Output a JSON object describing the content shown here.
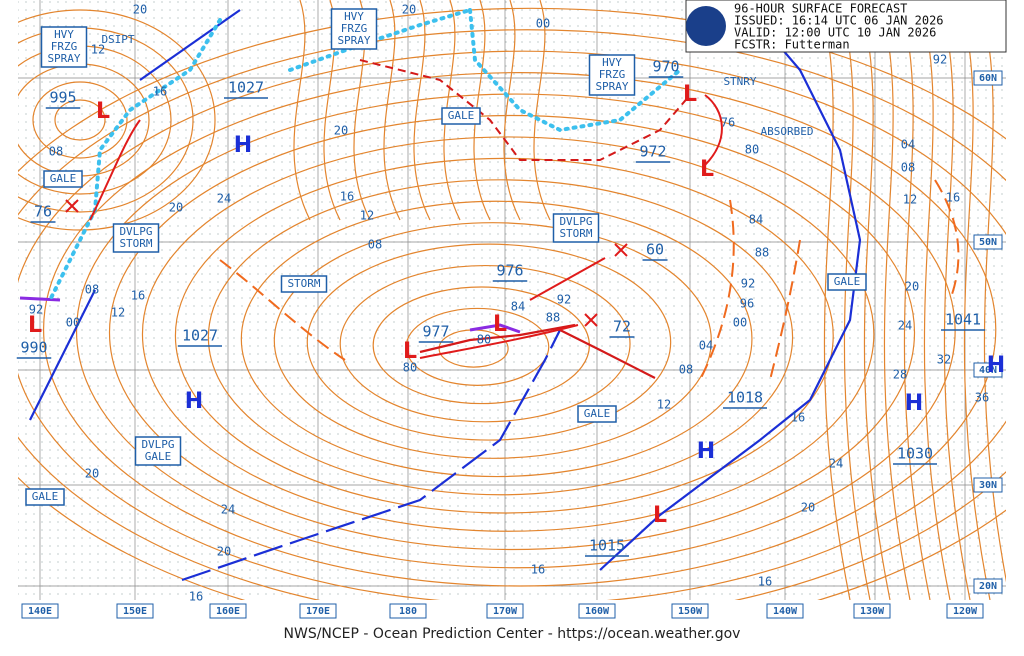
{
  "header": {
    "lines": [
      "96-HOUR SURFACE FORECAST",
      "ISSUED: 16:14 UTC 06 JAN 2026",
      "VALID:  12:00 UTC 10 JAN 2026",
      "FCSTR:  Futterman"
    ]
  },
  "footer": "NWS/NCEP - Ocean Prediction Center - https://ocean.weather.gov",
  "longitude_labels": [
    "140E",
    "150E",
    "160E",
    "170E",
    "180",
    "170W",
    "160W",
    "150W",
    "140W",
    "130W",
    "120W"
  ],
  "latitude_labels": [
    "60N",
    "50N",
    "40N",
    "30N",
    "20N"
  ],
  "boxes": [
    {
      "lines": [
        "HVY",
        "FRZG",
        "SPRAY"
      ]
    },
    {
      "lines": [
        "HVY",
        "FRZG",
        "SPRAY"
      ]
    },
    {
      "lines": [
        "HVY",
        "FRZG",
        "SPRAY"
      ]
    },
    {
      "lines": [
        "GALE"
      ]
    },
    {
      "lines": [
        "GALE"
      ]
    },
    {
      "lines": [
        "GALE"
      ]
    },
    {
      "lines": [
        "GALE"
      ]
    },
    {
      "lines": [
        "GALE"
      ]
    },
    {
      "lines": [
        "STORM"
      ]
    },
    {
      "lines": [
        "DVLPG",
        "STORM"
      ]
    },
    {
      "lines": [
        "DVLPG",
        "STORM"
      ]
    },
    {
      "lines": [
        "DVLPG",
        "GALE"
      ]
    }
  ],
  "notes": [
    "DSIPT",
    "STNRY",
    "ABSORBED"
  ],
  "pressure_labels": [
    "995",
    "1027",
    "76",
    "990",
    "1027",
    "970",
    "972",
    "976",
    "977",
    "60",
    "72",
    "1018",
    "1041",
    "1030",
    "1015"
  ],
  "isobar_labels": [
    "20",
    "12",
    "16",
    "08",
    "20",
    "24",
    "20",
    "16",
    "12",
    "08",
    "16",
    "12",
    "08",
    "00",
    "92",
    "20",
    "24",
    "20",
    "16",
    "20",
    "00",
    "84",
    "92",
    "88",
    "80",
    "80",
    "04",
    "08",
    "12",
    "00",
    "96",
    "92",
    "88",
    "84",
    "80",
    "76",
    "04",
    "08",
    "12",
    "16",
    "20",
    "24",
    "28",
    "32",
    "36",
    "16",
    "24",
    "20",
    "16",
    "16",
    "92"
  ],
  "highs": [
    "H",
    "H",
    "H",
    "H",
    "H"
  ],
  "lows": [
    "L",
    "L",
    "L",
    "L",
    "L",
    "L",
    "L"
  ]
}
